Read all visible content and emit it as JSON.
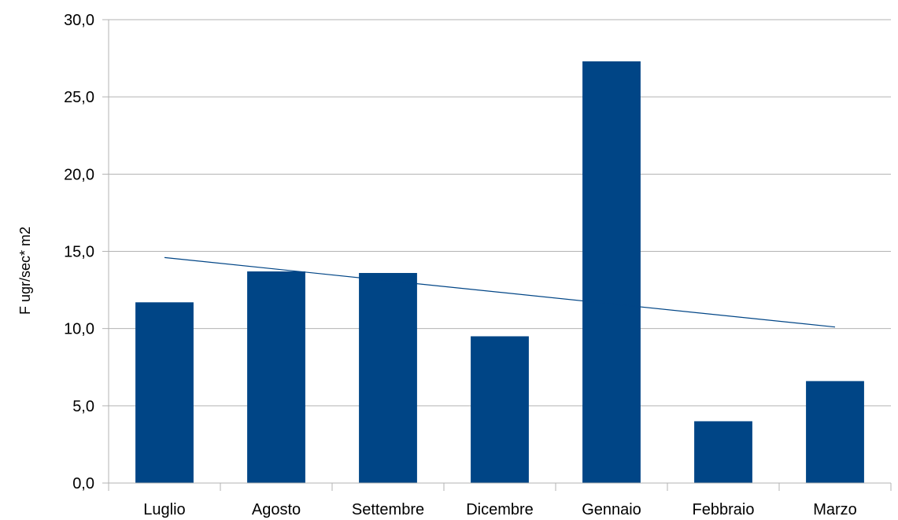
{
  "chart_data": {
    "type": "bar",
    "title": "",
    "xlabel": "",
    "ylabel": "F ugr/sec* m2",
    "categories": [
      "Luglio",
      "Agosto",
      "Settembre",
      "Dicembre",
      "Gennaio",
      "Febbraio",
      "Marzo"
    ],
    "values": [
      11.7,
      13.7,
      13.6,
      9.5,
      27.3,
      4.0,
      6.6
    ],
    "ylim": [
      0,
      30
    ],
    "yticks": [
      0,
      5,
      10,
      15,
      20,
      25,
      30
    ],
    "ytick_labels": [
      "0,0",
      "5,0",
      "10,0",
      "15,0",
      "20,0",
      "25,0",
      "30,0"
    ],
    "grid": true,
    "legend": "none",
    "trendline": {
      "type": "linear",
      "start": 14.6,
      "end": 10.1
    },
    "colors": {
      "bar": "#004586",
      "trendline": "#004586",
      "grid": "#b3b3b3"
    }
  }
}
